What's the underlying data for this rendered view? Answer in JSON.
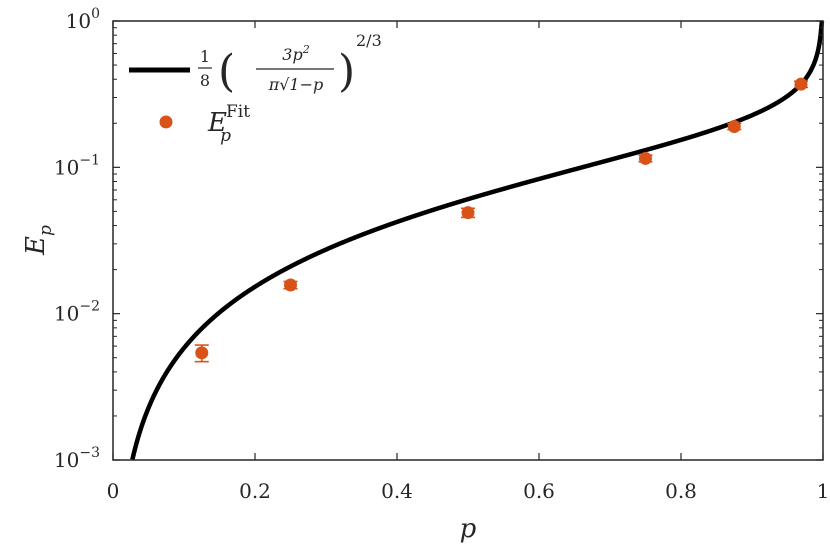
{
  "chart_data": {
    "type": "scatter",
    "title": "",
    "xlabel": "p",
    "ylabel": {
      "base": "E",
      "sub": "p"
    },
    "xlim": [
      0,
      1
    ],
    "ylim": [
      0.001,
      1
    ],
    "yscale": "log",
    "grid": false,
    "legend_position": "top-left",
    "x_ticks": [
      "0",
      "0.2",
      "0.4",
      "0.6",
      "0.8",
      "1"
    ],
    "y_ticks": [
      {
        "value": 0.001,
        "base": "10",
        "exp": "−3"
      },
      {
        "value": 0.01,
        "base": "10",
        "exp": "−2"
      },
      {
        "value": 0.1,
        "base": "10",
        "exp": "−1"
      },
      {
        "value": 1,
        "base": "10",
        "exp": "0"
      }
    ],
    "series": [
      {
        "kind": "line",
        "formula": "E(p) = (1/8) * (3 p^2 / (pi * sqrt(1 - p)))^(2/3)",
        "legend": {
          "coef_num": "1",
          "coef_den": "8",
          "num": "3p",
          "num_exp": "2",
          "den": "π√1−p",
          "exp": "2/3"
        },
        "color": "#000000"
      },
      {
        "kind": "points",
        "legend": {
          "base": "E",
          "sub": "p",
          "sup": "Fit"
        },
        "color": "#D95319",
        "x": [
          0.125,
          0.25,
          0.5,
          0.75,
          0.875,
          0.969
        ],
        "y": [
          0.0054,
          0.0157,
          0.049,
          0.115,
          0.19,
          0.37
        ],
        "err": [
          0.0007,
          0.0009,
          0.0035,
          0.006,
          0.009,
          0.018
        ]
      }
    ]
  }
}
